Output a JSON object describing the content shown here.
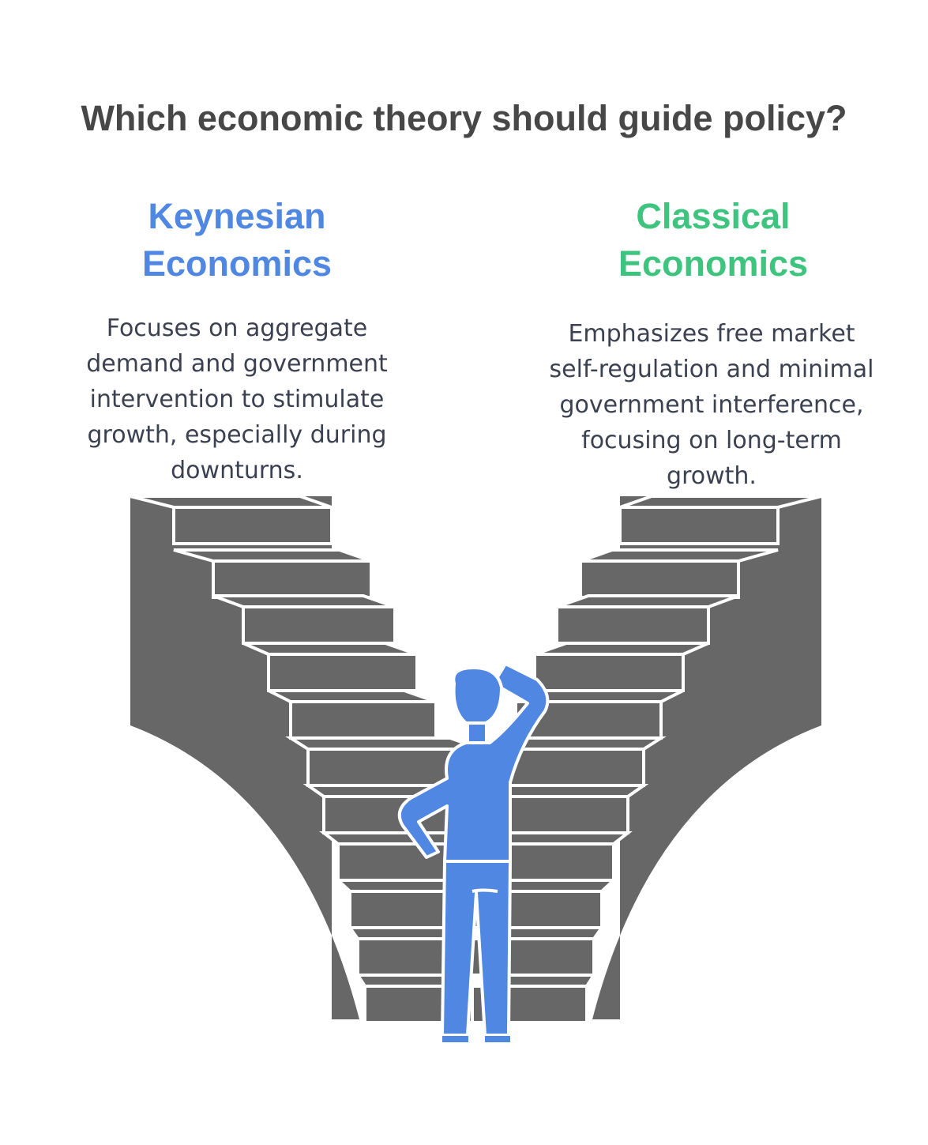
{
  "title": "Which economic theory should guide policy?",
  "options": [
    {
      "heading": "Keynesian Economics",
      "description": "Focuses on aggregate demand and government intervention to stimulate growth, especially during downturns.",
      "color": "#4f87e3"
    },
    {
      "heading": "Classical Economics",
      "description": "Emphasizes free market self-regulation and minimal government interference, focusing on long-term growth.",
      "color": "#3ec47e"
    }
  ],
  "colors": {
    "stairs": "#676767",
    "figure": "#4f87e3",
    "title": "#474747"
  },
  "icons": [
    "staircase-left-icon",
    "staircase-right-icon",
    "thinking-person-icon"
  ]
}
